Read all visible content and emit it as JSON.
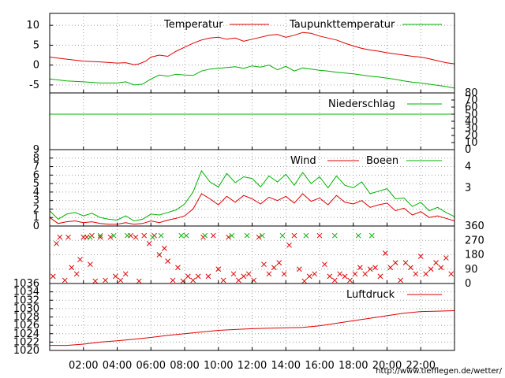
{
  "credit": "http://www.tiefflegen.de/wetter/",
  "colors": {
    "primary": "#e00000",
    "secondary": "#00b000",
    "grid": "#a0a0a0",
    "frame": "#000000"
  },
  "x_axis": {
    "ticks": [
      "02:00",
      "04:00",
      "06:00",
      "08:00",
      "10:00",
      "12:00",
      "14:00",
      "16:00",
      "18:00",
      "20:00",
      "22:00"
    ],
    "tick_hours": [
      2,
      4,
      6,
      8,
      10,
      12,
      14,
      16,
      18,
      20,
      22
    ],
    "range_hours": [
      0,
      24
    ]
  },
  "chart_data": [
    {
      "type": "line",
      "panel": "temperature",
      "ylim": [
        -7,
        13
      ],
      "y_ticks": [
        "10",
        "5",
        "0",
        "-5"
      ],
      "y_tick_values": [
        10,
        5,
        0,
        -5
      ],
      "series": [
        {
          "name": "Temperatur",
          "color": "#e00000",
          "x": [
            0,
            1,
            2,
            3,
            4,
            4.5,
            5,
            5.3,
            5.7,
            6,
            6.5,
            7,
            7.5,
            8,
            8.5,
            9,
            9.5,
            10,
            10.5,
            11,
            11.5,
            12,
            12.5,
            13,
            13.5,
            14,
            14.5,
            15,
            15.5,
            16,
            16.5,
            17,
            17.5,
            18,
            18.5,
            19,
            19.5,
            20,
            20.5,
            21,
            21.5,
            22,
            22.5,
            23,
            23.5,
            24
          ],
          "y": [
            2,
            1.5,
            1,
            0.8,
            0.5,
            0.6,
            0.1,
            0.3,
            1,
            2,
            2.5,
            2.2,
            3.5,
            4.5,
            5.5,
            6.3,
            6.8,
            7,
            6.5,
            6.8,
            6,
            6.5,
            7,
            7.5,
            7.7,
            7,
            7.5,
            8.2,
            8,
            7.3,
            6.8,
            6.3,
            5.5,
            4.8,
            4.2,
            3.8,
            3.5,
            3.1,
            2.8,
            2.5,
            2.2,
            2,
            1.6,
            1.1,
            0.6,
            0.3
          ]
        },
        {
          "name": "Taupunkttemperatur",
          "color": "#00b000",
          "x": [
            0,
            1,
            2,
            3,
            4,
            4.5,
            5,
            5.5,
            6,
            6.5,
            7,
            7.5,
            8,
            8.5,
            9,
            9.5,
            10,
            10.5,
            11,
            11.5,
            12,
            12.5,
            13,
            13.5,
            14,
            14.5,
            15,
            15.5,
            16,
            16.5,
            17,
            17.5,
            18,
            18.5,
            19,
            19.5,
            20,
            20.5,
            21,
            21.5,
            22,
            22.5,
            23,
            23.5,
            24
          ],
          "y": [
            -3.5,
            -4,
            -4.2,
            -4.5,
            -4.5,
            -4.2,
            -5,
            -4.8,
            -3.5,
            -2.5,
            -2.8,
            -2.3,
            -2.5,
            -2.6,
            -1.5,
            -1,
            -0.8,
            -0.6,
            -0.4,
            -0.8,
            -0.2,
            -0.5,
            0,
            -1.2,
            -0.3,
            -1.5,
            -0.7,
            -1,
            -1.3,
            -1.5,
            -1.8,
            -2,
            -2.2,
            -2.5,
            -2.8,
            -3,
            -3.3,
            -3.6,
            -4,
            -4.3,
            -4.5,
            -4.8,
            -5.1,
            -5.4,
            -5.8
          ]
        }
      ]
    },
    {
      "type": "line",
      "panel": "precipitation",
      "ylim": [
        0,
        80
      ],
      "y_ticks": [
        "80",
        "70",
        "60",
        "50",
        "40",
        "30",
        "20",
        "10",
        "0"
      ],
      "y_tick_values": [
        80,
        70,
        60,
        50,
        40,
        30,
        20,
        10,
        0
      ],
      "series": [
        {
          "name": "Niederschlag",
          "color": "#00b000",
          "x": [
            0,
            24
          ],
          "y": [
            50,
            50
          ]
        }
      ]
    },
    {
      "type": "line",
      "panel": "wind",
      "ylim": [
        0,
        9
      ],
      "y_ticks": [
        "9",
        "8",
        "7",
        "6",
        "5",
        "4",
        "3",
        "2",
        "1",
        "0"
      ],
      "y_tick_values": [
        9,
        8,
        7,
        6,
        5,
        4,
        3,
        2,
        1,
        0
      ],
      "y2_ticks": [
        "4",
        "3"
      ],
      "y2_tick_values": [
        7,
        4.5
      ],
      "series": [
        {
          "name": "Wind",
          "color": "#e00000",
          "x": [
            0,
            0.5,
            1,
            1.5,
            2,
            2.5,
            3,
            3.5,
            4,
            4.5,
            5,
            5.5,
            6,
            6.5,
            7,
            7.5,
            8,
            8.5,
            9,
            9.5,
            10,
            10.5,
            11,
            11.5,
            12,
            12.5,
            13,
            13.5,
            14,
            14.5,
            15,
            15.5,
            16,
            16.5,
            17,
            17.5,
            18,
            18.5,
            19,
            19.5,
            20,
            20.5,
            21,
            21.5,
            22,
            22.5,
            23,
            23.5,
            24
          ],
          "y": [
            1,
            0.3,
            0.5,
            0.6,
            0.4,
            0.5,
            0.3,
            0.2,
            0.2,
            0.4,
            0.2,
            0.3,
            0.6,
            0.4,
            0.7,
            0.9,
            1.2,
            2,
            3.8,
            3.2,
            2.5,
            3.5,
            2.8,
            3.6,
            3.2,
            2.6,
            3.4,
            3,
            3.5,
            2.7,
            3.8,
            2.9,
            3.3,
            2.5,
            3.6,
            2.8,
            2.6,
            3,
            2.2,
            2.5,
            2.7,
            1.8,
            2.1,
            1.3,
            1.7,
            1,
            1.2,
            0.9,
            0.6
          ]
        },
        {
          "name": "Boeen",
          "color": "#00b000",
          "x": [
            0,
            0.5,
            1,
            1.5,
            2,
            2.5,
            3,
            3.5,
            4,
            4.5,
            5,
            5.5,
            6,
            6.5,
            7,
            7.5,
            8,
            8.5,
            9,
            9.5,
            10,
            10.5,
            11,
            11.5,
            12,
            12.5,
            13,
            13.5,
            14,
            14.5,
            15,
            15.5,
            16,
            16.5,
            17,
            17.5,
            18,
            18.5,
            19,
            19.5,
            20,
            20.5,
            21,
            21.5,
            22,
            22.5,
            23,
            23.5,
            24
          ],
          "y": [
            1.8,
            0.8,
            1.4,
            1.6,
            1.2,
            1.5,
            1,
            0.8,
            0.7,
            1.2,
            0.6,
            0.8,
            1.4,
            1.3,
            1.6,
            1.9,
            2.6,
            4,
            6.5,
            5.2,
            4.6,
            6.2,
            5.1,
            5.8,
            5.6,
            4.6,
            5.9,
            5.2,
            6.1,
            4.8,
            6.3,
            5,
            5.8,
            4.5,
            5.9,
            4.8,
            4.5,
            5.2,
            3.8,
            4.1,
            4.4,
            3.2,
            3.3,
            2.3,
            2.8,
            1.8,
            2.2,
            1.6,
            1.1
          ]
        }
      ]
    },
    {
      "type": "scatter",
      "panel": "wind_direction",
      "ylim": [
        0,
        360
      ],
      "y_ticks": [
        "360",
        "270",
        "180",
        "90",
        "0"
      ],
      "y_tick_values": [
        360,
        270,
        180,
        90,
        0
      ],
      "series": [
        {
          "name": "",
          "color": "#e00000",
          "x": [
            0.2,
            0.4,
            0.6,
            0.9,
            1.1,
            1.3,
            1.6,
            1.8,
            2,
            2.2,
            2.4,
            2.5,
            2.7,
            3,
            3.3,
            3.6,
            3.9,
            4.2,
            4.5,
            4.8,
            5.1,
            5.3,
            5.6,
            5.9,
            6.2,
            6.5,
            6.8,
            7,
            7.3,
            7.6,
            7.9,
            8.2,
            8.5,
            8.8,
            9.1,
            9.4,
            9.7,
            10,
            10.3,
            10.6,
            10.9,
            11.2,
            11.5,
            11.8,
            12.1,
            12.4,
            12.7,
            13,
            13.3,
            13.6,
            13.9,
            14.2,
            14.5,
            14.8,
            15.1,
            15.4,
            15.7,
            16,
            16.3,
            16.6,
            16.9,
            17.2,
            17.5,
            17.8,
            18.1,
            18.4,
            18.7,
            19,
            19.3,
            19.6,
            19.9,
            20.2,
            20.5,
            20.8,
            21.1,
            21.4,
            21.7,
            22,
            22.3,
            22.6,
            22.9,
            23.2,
            23.5,
            23.8
          ],
          "y": [
            45,
            250,
            290,
            20,
            290,
            100,
            60,
            150,
            290,
            290,
            120,
            300,
            15,
            290,
            20,
            290,
            45,
            20,
            60,
            300,
            290,
            15,
            300,
            250,
            300,
            180,
            220,
            140,
            20,
            100,
            15,
            45,
            20,
            45,
            290,
            45,
            300,
            90,
            20,
            290,
            60,
            20,
            45,
            60,
            20,
            290,
            120,
            60,
            100,
            130,
            60,
            240,
            300,
            90,
            15,
            45,
            60,
            300,
            120,
            45,
            20,
            60,
            45,
            20,
            60,
            100,
            60,
            90,
            100,
            45,
            190,
            100,
            130,
            20,
            130,
            100,
            60,
            170,
            60,
            90,
            130,
            100,
            160,
            60
          ]
        },
        {
          "name": "",
          "color": "#00b000",
          "x": [
            2.4,
            3,
            3.8,
            4.6,
            6.1,
            6.6,
            7.8,
            8.1,
            9.2,
            10.8,
            11.7,
            12.6,
            13.8,
            15.2,
            16.9,
            18.3,
            19.1
          ],
          "y": [
            290,
            300,
            300,
            300,
            290,
            300,
            300,
            300,
            300,
            300,
            300,
            300,
            300,
            300,
            300,
            300,
            300
          ]
        }
      ]
    },
    {
      "type": "line",
      "panel": "pressure",
      "ylim": [
        1020,
        1036
      ],
      "y_ticks": [
        "1036",
        "1034",
        "1032",
        "1030",
        "1028",
        "1026",
        "1024",
        "1022",
        "1020"
      ],
      "y_tick_values": [
        1036,
        1034,
        1032,
        1030,
        1028,
        1026,
        1024,
        1022,
        1020
      ],
      "series": [
        {
          "name": "Luftdruck",
          "color": "#e00000",
          "x": [
            0,
            1,
            2,
            3,
            4,
            5,
            6,
            7,
            8,
            9,
            10,
            11,
            12,
            13,
            14,
            15,
            16,
            17,
            18,
            19,
            20,
            21,
            22,
            23,
            24
          ],
          "y": [
            1021.2,
            1021.2,
            1021.5,
            1022,
            1022.3,
            1022.7,
            1023.1,
            1023.6,
            1024,
            1024.4,
            1024.8,
            1025,
            1025.2,
            1025.3,
            1025.4,
            1025.5,
            1025.9,
            1026.5,
            1027.1,
            1027.7,
            1028.3,
            1028.9,
            1029.3,
            1029.4,
            1029.5
          ]
        }
      ]
    }
  ]
}
